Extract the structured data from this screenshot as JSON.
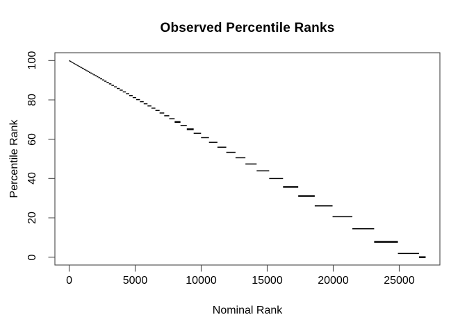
{
  "chart_data": {
    "type": "line",
    "style": "horizontal tie-run step segments (no vertical risers), R base plot",
    "title": "Observed Percentile Ranks",
    "xlabel": "Nominal Rank",
    "ylabel": "Percentile Rank",
    "xticks": [
      0,
      5000,
      10000,
      15000,
      20000,
      25000
    ],
    "xtick_labels": [
      "0",
      "5000",
      "10000",
      "15000",
      "20000",
      "25000"
    ],
    "yticks": [
      0,
      20,
      40,
      60,
      80,
      100
    ],
    "ytick_labels": [
      "0",
      "20",
      "40",
      "60",
      "80",
      "100"
    ],
    "xlim": [
      -1080,
      28080
    ],
    "ylim": [
      -4,
      104
    ],
    "n_total": 27000,
    "grid": false,
    "legend": null,
    "frame": true,
    "colors": {
      "line": "#000000",
      "frame": "#454545",
      "text": "#000000",
      "background": "#ffffff"
    },
    "segments": [
      [
        0,
        10,
        99.96,
        1
      ],
      [
        10,
        22,
        99.92,
        1
      ],
      [
        22,
        36,
        99.87,
        1
      ],
      [
        36,
        52,
        99.81,
        1
      ],
      [
        52,
        70,
        99.74,
        1
      ],
      [
        70,
        90,
        99.67,
        1
      ],
      [
        90,
        112,
        99.59,
        1
      ],
      [
        112,
        136,
        99.5,
        1
      ],
      [
        136,
        162,
        99.4,
        1
      ],
      [
        162,
        190,
        99.3,
        1
      ],
      [
        190,
        220,
        99.19,
        1
      ],
      [
        220,
        253,
        99.06,
        1
      ],
      [
        253,
        289,
        98.93,
        1
      ],
      [
        289,
        328,
        98.79,
        1
      ],
      [
        328,
        370,
        98.63,
        1
      ],
      [
        370,
        415,
        98.46,
        1
      ],
      [
        415,
        463,
        98.29,
        1
      ],
      [
        463,
        514,
        98.1,
        1
      ],
      [
        514,
        568,
        97.9,
        1
      ],
      [
        568,
        625,
        97.69,
        1
      ],
      [
        625,
        685,
        97.46,
        1
      ],
      [
        685,
        749,
        97.23,
        1
      ],
      [
        749,
        817,
        96.97,
        1
      ],
      [
        817,
        889,
        96.71,
        1
      ],
      [
        889,
        965,
        96.43,
        1
      ],
      [
        965,
        1045,
        96.13,
        1
      ],
      [
        1045,
        1129,
        95.82,
        1
      ],
      [
        1129,
        1217,
        95.49,
        1
      ],
      [
        1217,
        1309,
        95.15,
        1
      ],
      [
        1309,
        1405,
        94.8,
        1
      ],
      [
        1405,
        1505,
        94.43,
        1
      ],
      [
        1505,
        1610,
        94.04,
        1
      ],
      [
        1610,
        1720,
        93.63,
        1
      ],
      [
        1720,
        1835,
        93.2,
        1
      ],
      [
        1835,
        1955,
        92.76,
        1
      ],
      [
        1955,
        2080,
        92.3,
        1
      ],
      [
        2080,
        2210,
        91.81,
        1
      ],
      [
        2210,
        2350,
        91.3,
        1
      ],
      [
        2350,
        2500,
        90.74,
        1
      ],
      [
        2500,
        2660,
        90.15,
        1
      ],
      [
        2660,
        2830,
        89.52,
        1
      ],
      [
        2830,
        3010,
        88.85,
        1
      ],
      [
        3010,
        3200,
        88.15,
        1
      ],
      [
        3200,
        3400,
        87.41,
        1
      ],
      [
        3400,
        3610,
        86.63,
        1
      ],
      [
        3610,
        3830,
        85.81,
        1
      ],
      [
        3830,
        4060,
        84.96,
        1
      ],
      [
        4060,
        4300,
        84.07,
        1
      ],
      [
        4300,
        4550,
        83.15,
        1
      ],
      [
        4550,
        4810,
        82.19,
        1
      ],
      [
        4810,
        5080,
        81.19,
        1
      ],
      [
        5080,
        5360,
        80.15,
        1
      ],
      [
        5360,
        5645,
        79.09,
        1
      ],
      [
        5645,
        5935,
        78.02,
        1
      ],
      [
        5935,
        6230,
        76.93,
        1
      ],
      [
        6230,
        6530,
        75.81,
        1
      ],
      [
        6530,
        6850,
        74.63,
        1
      ],
      [
        6850,
        7200,
        73.33,
        1
      ],
      [
        7200,
        7580,
        71.93,
        1
      ],
      [
        7580,
        7990,
        70.41,
        1
      ],
      [
        7990,
        8430,
        68.78,
        2
      ],
      [
        8430,
        8910,
        67.0,
        1
      ],
      [
        8910,
        9430,
        65.07,
        2
      ],
      [
        9430,
        9990,
        63.0,
        1
      ],
      [
        9990,
        10590,
        60.78,
        1
      ],
      [
        10590,
        11230,
        58.41,
        1
      ],
      [
        11230,
        11900,
        55.93,
        1
      ],
      [
        11900,
        12600,
        53.33,
        1
      ],
      [
        12600,
        13350,
        50.56,
        1
      ],
      [
        13350,
        14200,
        47.41,
        1
      ],
      [
        14200,
        15150,
        43.89,
        1
      ],
      [
        15150,
        16200,
        40.0,
        1
      ],
      [
        16200,
        17350,
        35.74,
        2
      ],
      [
        17350,
        18600,
        31.11,
        2
      ],
      [
        18600,
        19950,
        26.11,
        1
      ],
      [
        19950,
        21450,
        20.56,
        1
      ],
      [
        21450,
        23100,
        14.44,
        1
      ],
      [
        23100,
        24900,
        7.78,
        2
      ],
      [
        24900,
        26500,
        1.85,
        1
      ],
      [
        26500,
        27000,
        0.0,
        2
      ]
    ]
  }
}
